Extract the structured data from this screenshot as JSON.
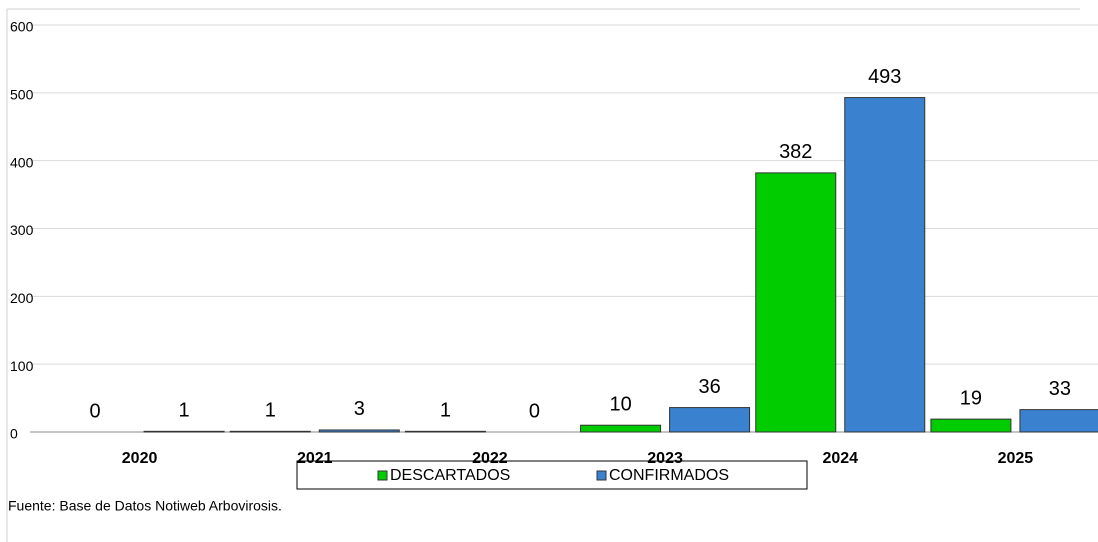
{
  "chart_data": {
    "type": "bar",
    "categories": [
      "2020",
      "2021",
      "2022",
      "2023",
      "2024",
      "2025"
    ],
    "series": [
      {
        "name": "DESCARTADOS",
        "color": "#00cc00",
        "values": [
          0,
          1,
          1,
          10,
          382,
          19
        ]
      },
      {
        "name": "CONFIRMADOS",
        "color": "#3a82d0",
        "values": [
          1,
          3,
          0,
          36,
          493,
          33
        ]
      }
    ],
    "ylim": [
      0,
      600
    ],
    "yticks": [
      0,
      100,
      200,
      300,
      400,
      500,
      600
    ],
    "grid": true,
    "legend": "bottom",
    "source": "Fuente: Base de Datos Notiweb  Arbovirosis."
  }
}
